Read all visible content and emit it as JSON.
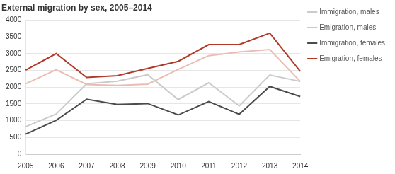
{
  "chart_data": {
    "type": "line",
    "title": "External migration by sex, 2005–2014",
    "categories": [
      "2005",
      "2006",
      "2007",
      "2008",
      "2009",
      "2010",
      "2011",
      "2012",
      "2013",
      "2014"
    ],
    "series": [
      {
        "name": "Immigration, males",
        "color": "#cbcbcb",
        "values": [
          820,
          1200,
          2100,
          2180,
          2370,
          1630,
          2130,
          1440,
          2360,
          2170
        ]
      },
      {
        "name": "Emigration, males",
        "color": "#ebbcb4",
        "values": [
          2100,
          2520,
          2080,
          2050,
          2090,
          2530,
          2940,
          3050,
          3120,
          2170
        ]
      },
      {
        "name": "Immigration, females",
        "color": "#4b4b4b",
        "values": [
          600,
          1010,
          1640,
          1480,
          1510,
          1170,
          1570,
          1190,
          2020,
          1720
        ]
      },
      {
        "name": "Emigration, females",
        "color": "#b03a2a",
        "values": [
          2510,
          3000,
          2290,
          2340,
          2560,
          2770,
          3270,
          3270,
          3610,
          2470
        ]
      }
    ],
    "ylim": [
      0,
      4000
    ],
    "yticks": [
      0,
      500,
      1000,
      1500,
      2000,
      2500,
      3000,
      3500,
      4000
    ],
    "grid": true,
    "legend": "right"
  }
}
